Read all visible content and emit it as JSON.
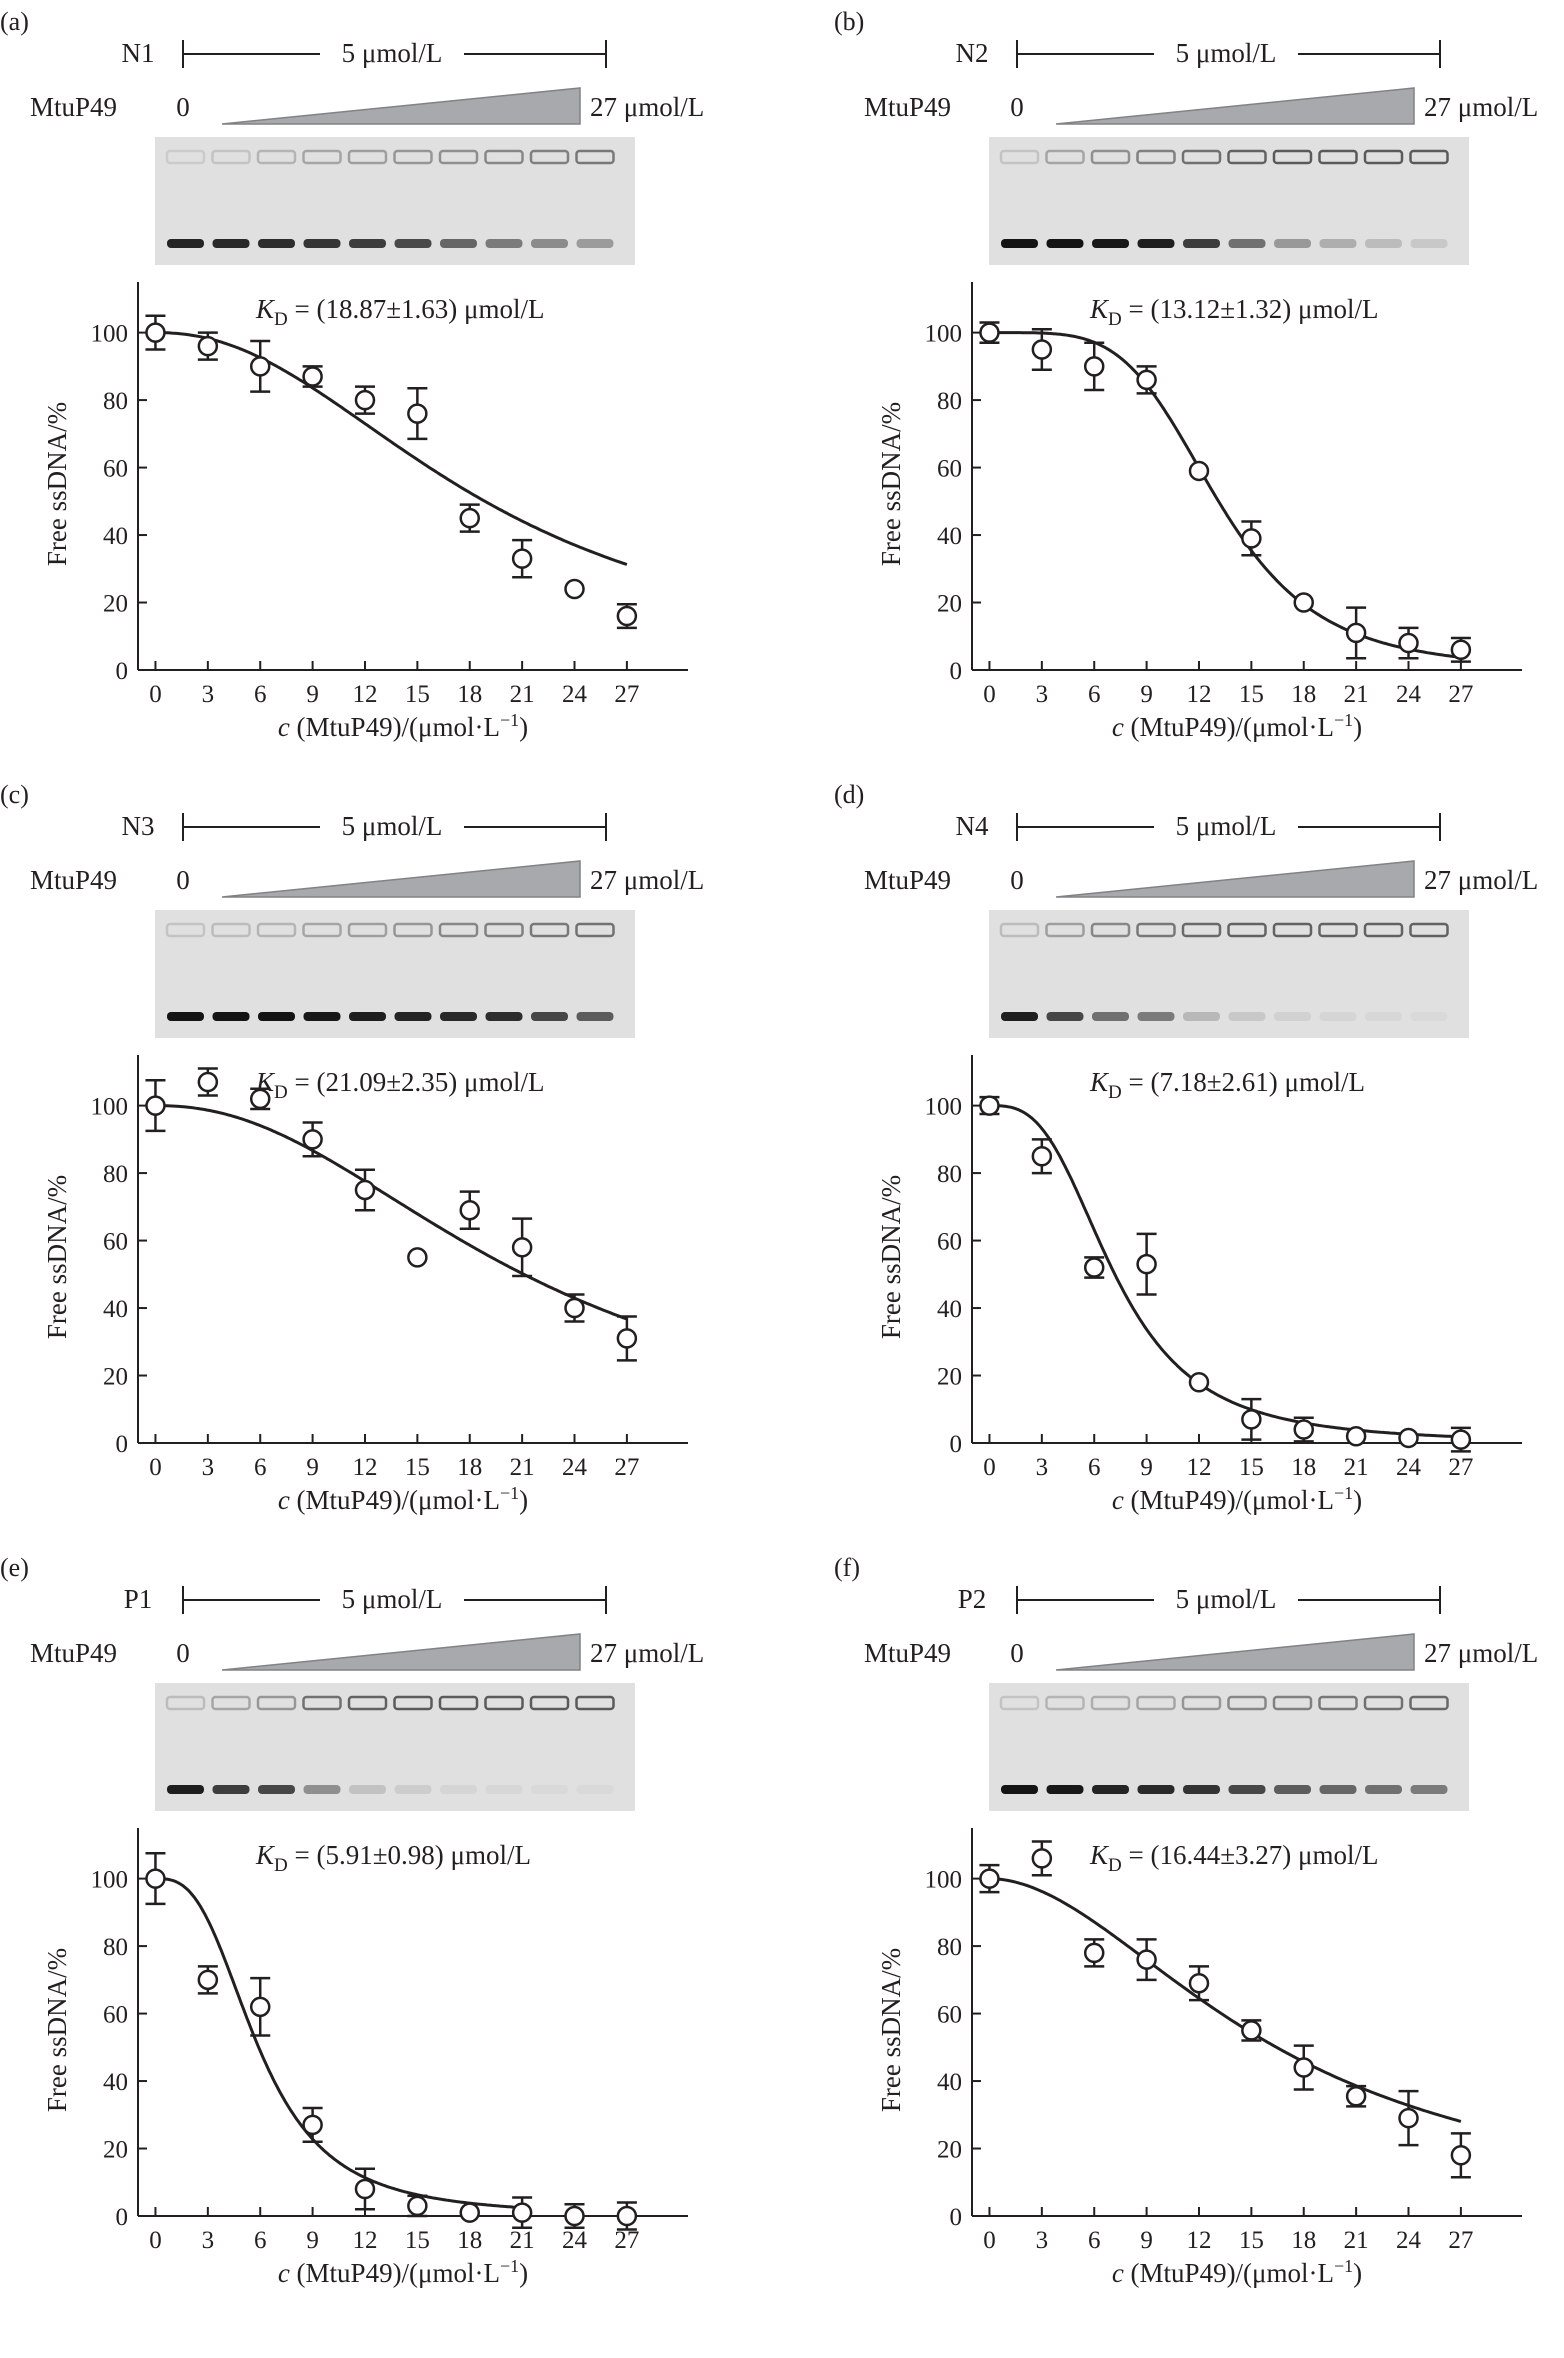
{
  "figure": {
    "gel_protein_label": "MtuP49",
    "concentration_label": "5 μmol/L",
    "gradient_start": "0",
    "gradient_end": "27 μmol/L",
    "colors": {
      "ink": "#231f20",
      "wedge": "#a7a9ac",
      "gel_bg": "#e0e0e0"
    }
  },
  "chart_data": [
    {
      "panel": "(a)",
      "substrate": "N1",
      "type": "scatter",
      "kd_text": "(18.87±1.63) μmol/L",
      "xlabel": "c (MtuP49)/(μmol·L⁻¹)",
      "ylabel": "Free ssDNA/%",
      "xticks": [
        0,
        3,
        6,
        9,
        12,
        15,
        18,
        21,
        24,
        27
      ],
      "yticks": [
        0,
        20,
        40,
        60,
        80,
        100
      ],
      "xlim": [
        -1,
        30.5
      ],
      "ylim": [
        0,
        115
      ],
      "x": [
        0,
        3,
        6,
        9,
        12,
        15,
        18,
        21,
        24,
        27
      ],
      "y": [
        100,
        96,
        90,
        87,
        80,
        76,
        45,
        33,
        24,
        16
      ],
      "err": [
        5,
        4,
        7.5,
        3,
        4,
        7.5,
        4,
        5.5,
        1,
        3.5
      ],
      "fit": {
        "kd": 18.87,
        "n": 2.2,
        "x_end": 27
      },
      "gel": {
        "free_band_intensity": [
          0.92,
          0.9,
          0.88,
          0.84,
          0.8,
          0.74,
          0.6,
          0.5,
          0.42,
          0.34
        ],
        "complex_band_intensity": [
          0.15,
          0.2,
          0.3,
          0.4,
          0.45,
          0.5,
          0.55,
          0.6,
          0.65,
          0.7
        ]
      }
    },
    {
      "panel": "(b)",
      "substrate": "N2",
      "type": "scatter",
      "kd_text": "(13.12±1.32) μmol/L",
      "xlabel": "c (MtuP49)/(μmol·L⁻¹)",
      "ylabel": "Free ssDNA/%",
      "xticks": [
        0,
        3,
        6,
        9,
        12,
        15,
        18,
        21,
        24,
        27
      ],
      "yticks": [
        0,
        20,
        40,
        60,
        80,
        100
      ],
      "xlim": [
        -1,
        30.5
      ],
      "ylim": [
        0,
        115
      ],
      "x": [
        0,
        3,
        6,
        9,
        12,
        15,
        18,
        21,
        24,
        27
      ],
      "y": [
        100,
        95,
        90,
        86,
        59,
        39,
        20,
        11,
        8,
        6
      ],
      "err": [
        3,
        6,
        7,
        4,
        1,
        5,
        1,
        7.5,
        4.5,
        3.5
      ],
      "fit": {
        "kd": 13.12,
        "n": 4.5,
        "x_end": 27
      },
      "gel": {
        "free_band_intensity": [
          1,
          1,
          0.98,
          0.95,
          0.8,
          0.55,
          0.35,
          0.25,
          0.18,
          0.12
        ],
        "complex_band_intensity": [
          0.2,
          0.4,
          0.55,
          0.65,
          0.75,
          0.85,
          0.9,
          0.9,
          0.9,
          0.9
        ]
      }
    },
    {
      "panel": "(c)",
      "substrate": "N3",
      "type": "scatter",
      "kd_text": "(21.09±2.35) μmol/L",
      "xlabel": "c (MtuP49)/(μmol·L⁻¹)",
      "ylabel": "Free ssDNA/%",
      "xticks": [
        0,
        3,
        6,
        9,
        12,
        15,
        18,
        21,
        24,
        27
      ],
      "yticks": [
        0,
        20,
        40,
        60,
        80,
        100
      ],
      "xlim": [
        -1,
        30.5
      ],
      "ylim": [
        0,
        115
      ],
      "x": [
        0,
        3,
        6,
        9,
        12,
        15,
        18,
        21,
        24,
        27
      ],
      "y": [
        100,
        107,
        102,
        90,
        75,
        55,
        69,
        58,
        40,
        31
      ],
      "err": [
        7.5,
        4,
        3,
        5,
        6,
        1,
        5.5,
        8.5,
        4,
        6.5
      ],
      "fit": {
        "kd": 21.09,
        "n": 2.2,
        "x_end": 27
      },
      "gel": {
        "free_band_intensity": [
          1,
          1,
          1,
          0.98,
          0.95,
          0.92,
          0.9,
          0.88,
          0.75,
          0.65
        ],
        "complex_band_intensity": [
          0.2,
          0.25,
          0.3,
          0.4,
          0.45,
          0.5,
          0.6,
          0.65,
          0.7,
          0.75
        ]
      }
    },
    {
      "panel": "(d)",
      "substrate": "N4",
      "type": "scatter",
      "kd_text": "(7.18±2.61) μmol/L",
      "xlabel": "c (MtuP49)/(μmol·L⁻¹)",
      "ylabel": "Free ssDNA/%",
      "xticks": [
        0,
        3,
        6,
        9,
        12,
        15,
        18,
        21,
        24,
        27
      ],
      "yticks": [
        0,
        20,
        40,
        60,
        80,
        100
      ],
      "xlim": [
        -1,
        30.5
      ],
      "ylim": [
        0,
        115
      ],
      "x": [
        0,
        3,
        6,
        9,
        12,
        15,
        18,
        21,
        24,
        27
      ],
      "y": [
        100,
        85,
        52,
        53,
        18,
        7,
        4,
        2,
        1.5,
        1
      ],
      "err": [
        2.5,
        5,
        3,
        9,
        1,
        6,
        3.5,
        1,
        1,
        3.5
      ],
      "fit": {
        "kd": 7.18,
        "n": 3.0,
        "x_end": 27
      },
      "gel": {
        "free_band_intensity": [
          0.95,
          0.75,
          0.55,
          0.5,
          0.2,
          0.12,
          0.08,
          0.06,
          0.05,
          0.04
        ],
        "complex_band_intensity": [
          0.25,
          0.45,
          0.6,
          0.7,
          0.8,
          0.85,
          0.85,
          0.85,
          0.85,
          0.85
        ]
      }
    },
    {
      "panel": "(e)",
      "substrate": "P1",
      "type": "scatter",
      "kd_text": "(5.91±0.98) μmol/L",
      "xlabel": "c (MtuP49)/(μmol·L⁻¹)",
      "ylabel": "Free ssDNA/%",
      "xticks": [
        0,
        3,
        6,
        9,
        12,
        15,
        18,
        21,
        24,
        27
      ],
      "yticks": [
        0,
        20,
        40,
        60,
        80,
        100
      ],
      "xlim": [
        -1,
        30.5
      ],
      "ylim": [
        0,
        115
      ],
      "x": [
        0,
        3,
        6,
        9,
        12,
        15,
        18,
        21,
        24,
        27
      ],
      "y": [
        100,
        70,
        62,
        27,
        8,
        3,
        1,
        1,
        0,
        0
      ],
      "err": [
        7.5,
        4,
        8.5,
        5,
        6,
        3,
        1,
        4.5,
        3.5,
        4
      ],
      "fit": {
        "kd": 5.91,
        "n": 2.9,
        "x_end": 21
      },
      "gel": {
        "free_band_intensity": [
          0.95,
          0.8,
          0.75,
          0.4,
          0.15,
          0.1,
          0.06,
          0.05,
          0.04,
          0.04
        ],
        "complex_band_intensity": [
          0.25,
          0.4,
          0.5,
          0.75,
          0.85,
          0.9,
          0.9,
          0.9,
          0.9,
          0.9
        ]
      }
    },
    {
      "panel": "(f)",
      "substrate": "P2",
      "type": "scatter",
      "kd_text": "(16.44±3.27) μmol/L",
      "xlabel": "c (MtuP49)/(μmol·L⁻¹)",
      "ylabel": "Free ssDNA/%",
      "xticks": [
        0,
        3,
        6,
        9,
        12,
        15,
        18,
        21,
        24,
        27
      ],
      "yticks": [
        0,
        20,
        40,
        60,
        80,
        100
      ],
      "xlim": [
        -1,
        30.5
      ],
      "ylim": [
        0,
        115
      ],
      "x": [
        0,
        3,
        6,
        9,
        12,
        15,
        18,
        21,
        24,
        27
      ],
      "y": [
        100,
        106,
        78,
        76,
        69,
        55,
        44,
        35.5,
        29,
        18
      ],
      "err": [
        4,
        5,
        4,
        6,
        5,
        3,
        6.5,
        3,
        8,
        6.5
      ],
      "fit": {
        "kd": 16.44,
        "n": 1.9,
        "x_end": 27
      },
      "gel": {
        "free_band_intensity": [
          1,
          0.98,
          0.92,
          0.9,
          0.85,
          0.75,
          0.65,
          0.6,
          0.55,
          0.5
        ],
        "complex_band_intensity": [
          0.2,
          0.3,
          0.35,
          0.4,
          0.5,
          0.6,
          0.65,
          0.7,
          0.75,
          0.8
        ]
      }
    }
  ]
}
